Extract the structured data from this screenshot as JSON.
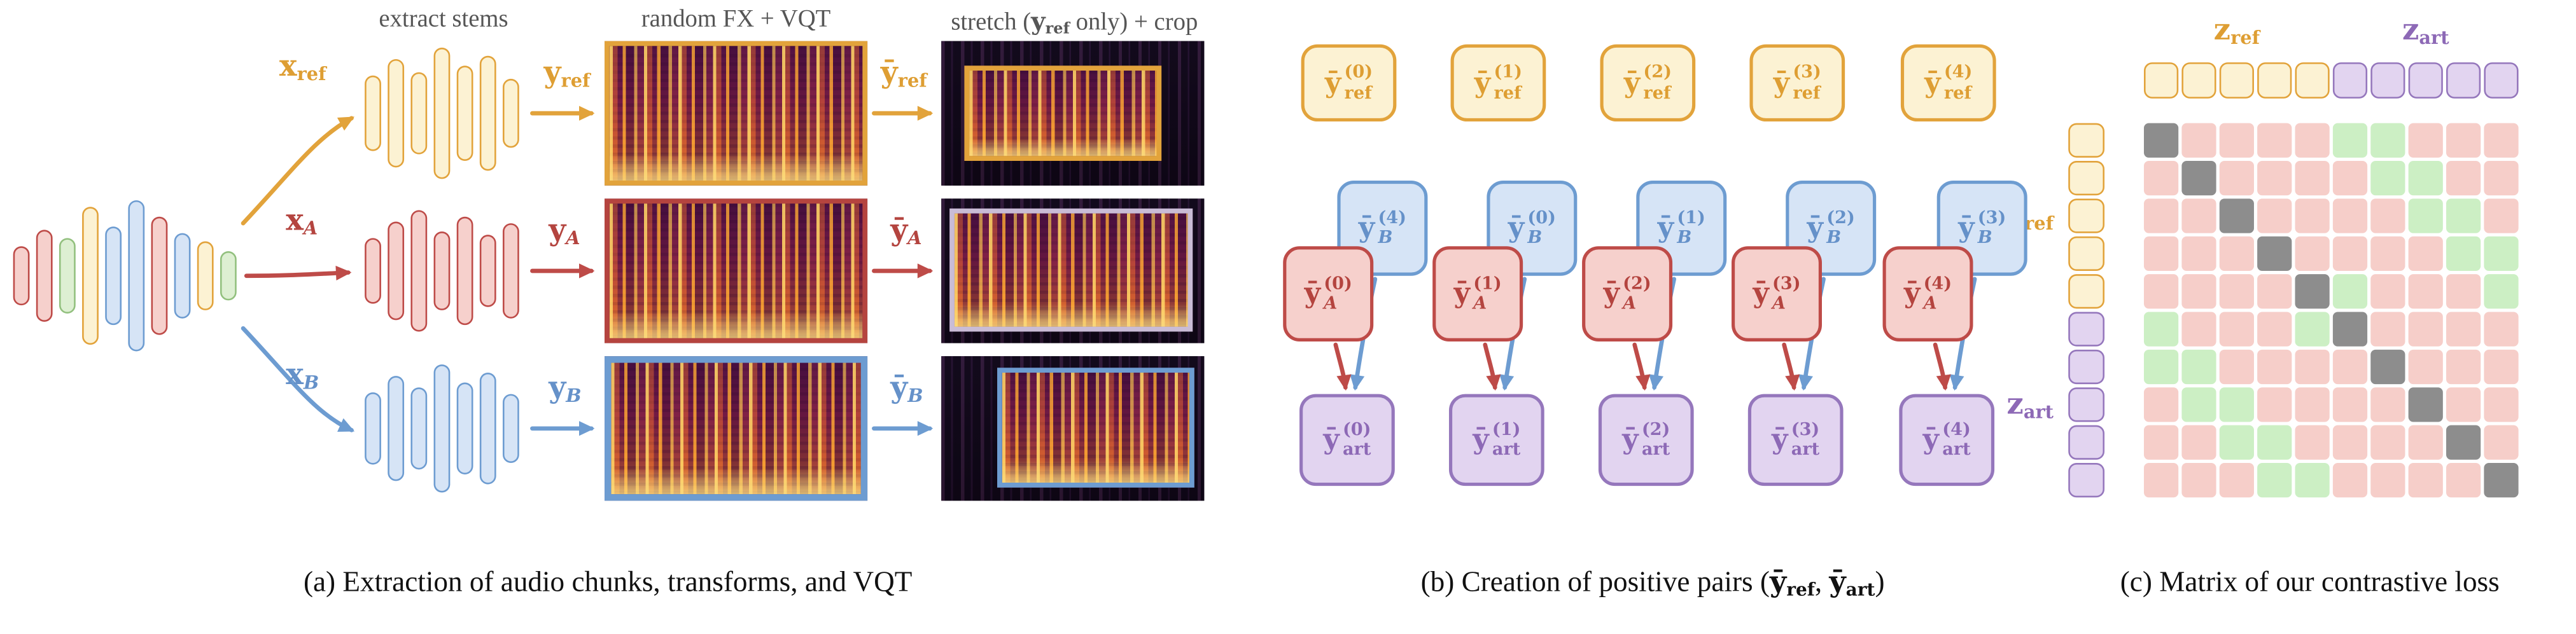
{
  "palette": {
    "yellow": {
      "fill": "#FCF2D3",
      "border": "#E2A33B",
      "text": "#DE9E33"
    },
    "red": {
      "fill": "#F6D0CC",
      "border": "#BE4B48",
      "text": "#B4443F"
    },
    "blue": {
      "fill": "#D6E4F6",
      "border": "#6D9CD1",
      "text": "#6591C9"
    },
    "purple": {
      "fill": "#E2D4F0",
      "border": "#9577BC",
      "text": "#8D69B6"
    },
    "green": {
      "fill": "#DDEFD2",
      "border": "#92C07E"
    },
    "pink_cell": "#F6CEC9",
    "green_cell": "#CCEFC4",
    "gray_cell": "#8D8D8D",
    "header_text": "#565656"
  },
  "panel_a": {
    "caption": "(a) Extraction of audio chunks, transforms, and VQT",
    "label_extract": "extract stems",
    "label_fx": "random FX + VQT",
    "stretch": {
      "pre": "stretch (",
      "y": "y",
      "sub": "ref",
      "post": " only) + crop"
    },
    "mix_bars": [
      [
        "red",
        36
      ],
      [
        "red",
        56
      ],
      [
        "green",
        46
      ],
      [
        "yellow",
        84
      ],
      [
        "blue",
        60
      ],
      [
        "blue",
        92
      ],
      [
        "red",
        72
      ],
      [
        "blue",
        52
      ],
      [
        "yellow",
        42
      ],
      [
        "green",
        30
      ]
    ],
    "stems": [
      {
        "x": "x",
        "y": "y",
        "yb": "ȳ",
        "sub": "ref",
        "color": "yellow",
        "bars": [
          46,
          66,
          50,
          80,
          58,
          70,
          42
        ]
      },
      {
        "x": "x",
        "y": "y",
        "yb": "ȳ",
        "sub": "A",
        "color": "red",
        "bars": [
          40,
          60,
          74,
          48,
          66,
          44,
          58
        ]
      },
      {
        "x": "x",
        "y": "y",
        "yb": "ȳ",
        "sub": "B",
        "color": "blue",
        "bars": [
          44,
          64,
          50,
          78,
          56,
          68,
          42
        ]
      }
    ]
  },
  "panel_b": {
    "caption": {
      "pre": "(b) Creation of positive pairs (",
      "y": "ȳ",
      "sub_ref": "ref",
      "comma": ", ",
      "sub_art": "art",
      "post": ")"
    },
    "box_main": "ȳ",
    "subs": {
      "ref": "ref",
      "a": "A",
      "b": "B",
      "art": "art"
    },
    "columns": [
      {
        "ref_sup": "(0)",
        "b_sup": "(4)",
        "a_sup": "(0)",
        "art_sup": "(0)"
      },
      {
        "ref_sup": "(1)",
        "b_sup": "(0)",
        "a_sup": "(1)",
        "art_sup": "(1)"
      },
      {
        "ref_sup": "(2)",
        "b_sup": "(1)",
        "a_sup": "(2)",
        "art_sup": "(2)"
      },
      {
        "ref_sup": "(3)",
        "b_sup": "(2)",
        "a_sup": "(3)",
        "art_sup": "(3)"
      },
      {
        "ref_sup": "(4)",
        "b_sup": "(3)",
        "a_sup": "(4)",
        "art_sup": "(4)"
      }
    ]
  },
  "panel_c": {
    "caption": "(c) Matrix of our contrastive loss",
    "z": "z",
    "sub_ref": "ref",
    "sub_art": "art",
    "grid": [
      "dppppggppp",
      "pdppppggpp",
      "ppdppppggp",
      "pppdppppgg",
      "ppppdgpppg",
      "gpppgdpppp",
      "ggppppdppp",
      "pggppppdpp",
      "ppggppppdp",
      "pppggppppd"
    ]
  }
}
